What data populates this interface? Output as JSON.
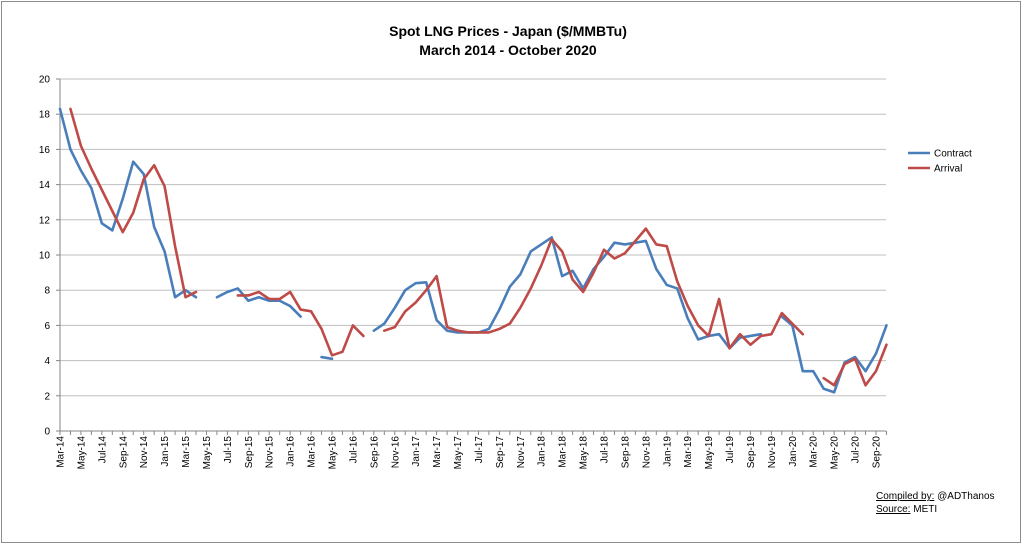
{
  "chart_data": {
    "type": "line",
    "title": "Spot LNG Prices - Japan ($/MMBTu)",
    "subtitle": "March 2014 - October 2020",
    "xlabel": "",
    "ylabel": "",
    "ylim": [
      0,
      20
    ],
    "yticks": [
      0,
      2,
      4,
      6,
      8,
      10,
      12,
      14,
      16,
      18,
      20
    ],
    "grid": true,
    "legend_position": "right",
    "categories": [
      "Mar-14",
      "Apr-14",
      "May-14",
      "Jun-14",
      "Jul-14",
      "Aug-14",
      "Sep-14",
      "Oct-14",
      "Nov-14",
      "Dec-14",
      "Jan-15",
      "Feb-15",
      "Mar-15",
      "Apr-15",
      "May-15",
      "Jun-15",
      "Jul-15",
      "Aug-15",
      "Sep-15",
      "Oct-15",
      "Nov-15",
      "Dec-15",
      "Jan-16",
      "Feb-16",
      "Mar-16",
      "Apr-16",
      "May-16",
      "Jun-16",
      "Jul-16",
      "Aug-16",
      "Sep-16",
      "Oct-16",
      "Nov-16",
      "Dec-16",
      "Jan-17",
      "Feb-17",
      "Mar-17",
      "Apr-17",
      "May-17",
      "Jun-17",
      "Jul-17",
      "Aug-17",
      "Sep-17",
      "Oct-17",
      "Nov-17",
      "Dec-17",
      "Jan-18",
      "Feb-18",
      "Mar-18",
      "Apr-18",
      "May-18",
      "Jun-18",
      "Jul-18",
      "Aug-18",
      "Sep-18",
      "Oct-18",
      "Nov-18",
      "Dec-18",
      "Jan-19",
      "Feb-19",
      "Mar-19",
      "Apr-19",
      "May-19",
      "Jun-19",
      "Jul-19",
      "Aug-19",
      "Sep-19",
      "Oct-19",
      "Nov-19",
      "Dec-19",
      "Jan-20",
      "Feb-20",
      "Mar-20",
      "Apr-20",
      "May-20",
      "Jun-20",
      "Jul-20",
      "Aug-20",
      "Sep-20",
      "Oct-20"
    ],
    "series": [
      {
        "name": "Contract",
        "color": "#4a7ebb",
        "values": [
          18.3,
          16.0,
          14.8,
          13.8,
          11.8,
          11.4,
          13.2,
          15.3,
          14.6,
          11.6,
          10.2,
          7.6,
          8.0,
          7.6,
          null,
          7.6,
          7.9,
          8.1,
          7.4,
          7.6,
          7.4,
          7.4,
          7.1,
          6.5,
          null,
          4.2,
          4.1,
          null,
          null,
          null,
          5.7,
          6.1,
          7.0,
          8.0,
          8.4,
          8.45,
          6.3,
          5.7,
          5.6,
          5.6,
          5.6,
          5.8,
          6.9,
          8.2,
          8.9,
          10.2,
          10.6,
          11.0,
          8.8,
          9.1,
          8.1,
          9.2,
          9.9,
          10.7,
          10.6,
          10.7,
          10.8,
          9.2,
          8.3,
          8.1,
          6.4,
          5.2,
          5.4,
          5.5,
          4.7,
          5.3,
          5.4,
          5.5,
          null,
          6.5,
          6.0,
          3.4,
          3.4,
          2.4,
          2.2,
          3.9,
          4.2,
          3.4,
          4.4,
          6.0
        ]
      },
      {
        "name": "Arrival",
        "color": "#be4b48",
        "values": [
          null,
          18.3,
          16.2,
          14.9,
          13.7,
          12.5,
          11.3,
          12.4,
          14.3,
          15.1,
          13.9,
          10.5,
          7.6,
          7.9,
          null,
          null,
          null,
          7.7,
          7.7,
          7.9,
          7.5,
          7.5,
          7.9,
          6.9,
          6.8,
          5.8,
          4.3,
          4.5,
          6.0,
          5.4,
          null,
          5.7,
          5.9,
          6.8,
          7.3,
          8.0,
          8.8,
          5.9,
          5.7,
          5.6,
          5.6,
          5.6,
          5.8,
          6.1,
          7.0,
          8.1,
          9.4,
          10.9,
          10.2,
          8.6,
          7.9,
          9.0,
          10.3,
          9.8,
          10.1,
          10.8,
          11.5,
          10.6,
          10.5,
          8.5,
          7.1,
          6.0,
          5.4,
          7.5,
          4.7,
          5.5,
          4.9,
          5.4,
          5.5,
          6.7,
          6.1,
          5.5,
          null,
          3.0,
          2.6,
          3.8,
          4.1,
          2.6,
          3.4,
          4.9
        ]
      }
    ]
  },
  "credits": {
    "compiled_label": "Compiled by:",
    "compiled_value": " @ADThanos",
    "source_label": "Source:",
    "source_value": " METI"
  }
}
